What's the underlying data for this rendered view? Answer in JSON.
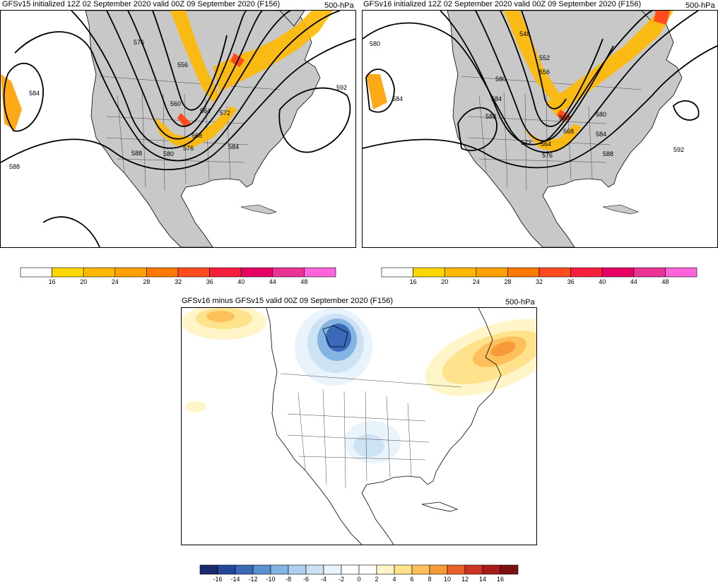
{
  "panels": [
    {
      "title_left": "GFSv15 initialized 12Z 02 September 2020 valid 00Z 09 September 2020 (F156)",
      "title_right": "500-hPa",
      "contour_labels": [
        "576",
        "556",
        "560",
        "564",
        "568",
        "572",
        "576",
        "580",
        "584",
        "588",
        "588",
        "584",
        "592"
      ]
    },
    {
      "title_left": "GFSv16 initialized 12Z 02 September 2020 valid 00Z 09 September 2020 (F156)",
      "title_right": "500-hPa",
      "contour_labels": [
        "580",
        "584",
        "548",
        "552",
        "556",
        "580",
        "584",
        "588",
        "560",
        "568",
        "572",
        "564",
        "576",
        "580",
        "584",
        "588",
        "592"
      ]
    },
    {
      "title_left": "GFSv16 minus GFSv15 valid 00Z 09 September 2020 (F156)",
      "title_right": "500-hPa",
      "contour_labels": []
    }
  ],
  "wind_colorbar": {
    "ticks": [
      "16",
      "20",
      "24",
      "28",
      "32",
      "36",
      "40",
      "44",
      "48"
    ],
    "colors": [
      "#ffffff",
      "#ffd700",
      "#ffb900",
      "#ffa000",
      "#ff7800",
      "#ff4b1e",
      "#f51e3c",
      "#e60064",
      "#eb3296",
      "#ff64dc"
    ]
  },
  "diff_colorbar": {
    "ticks": [
      "-16",
      "-14",
      "-12",
      "-10",
      "-8",
      "-6",
      "-4",
      "-2",
      "0",
      "2",
      "4",
      "6",
      "8",
      "10",
      "12",
      "14",
      "16"
    ],
    "colors": [
      "#1a2a6c",
      "#24479a",
      "#3a69b8",
      "#5a8fd0",
      "#84b4e2",
      "#aed0ee",
      "#cde3f4",
      "#e8f3fb",
      "#ffffff",
      "#ffffff",
      "#fff5c8",
      "#ffe38c",
      "#fdc05a",
      "#f79a3a",
      "#e8612a",
      "#cc3323",
      "#a81c1c",
      "#7a1010"
    ]
  }
}
